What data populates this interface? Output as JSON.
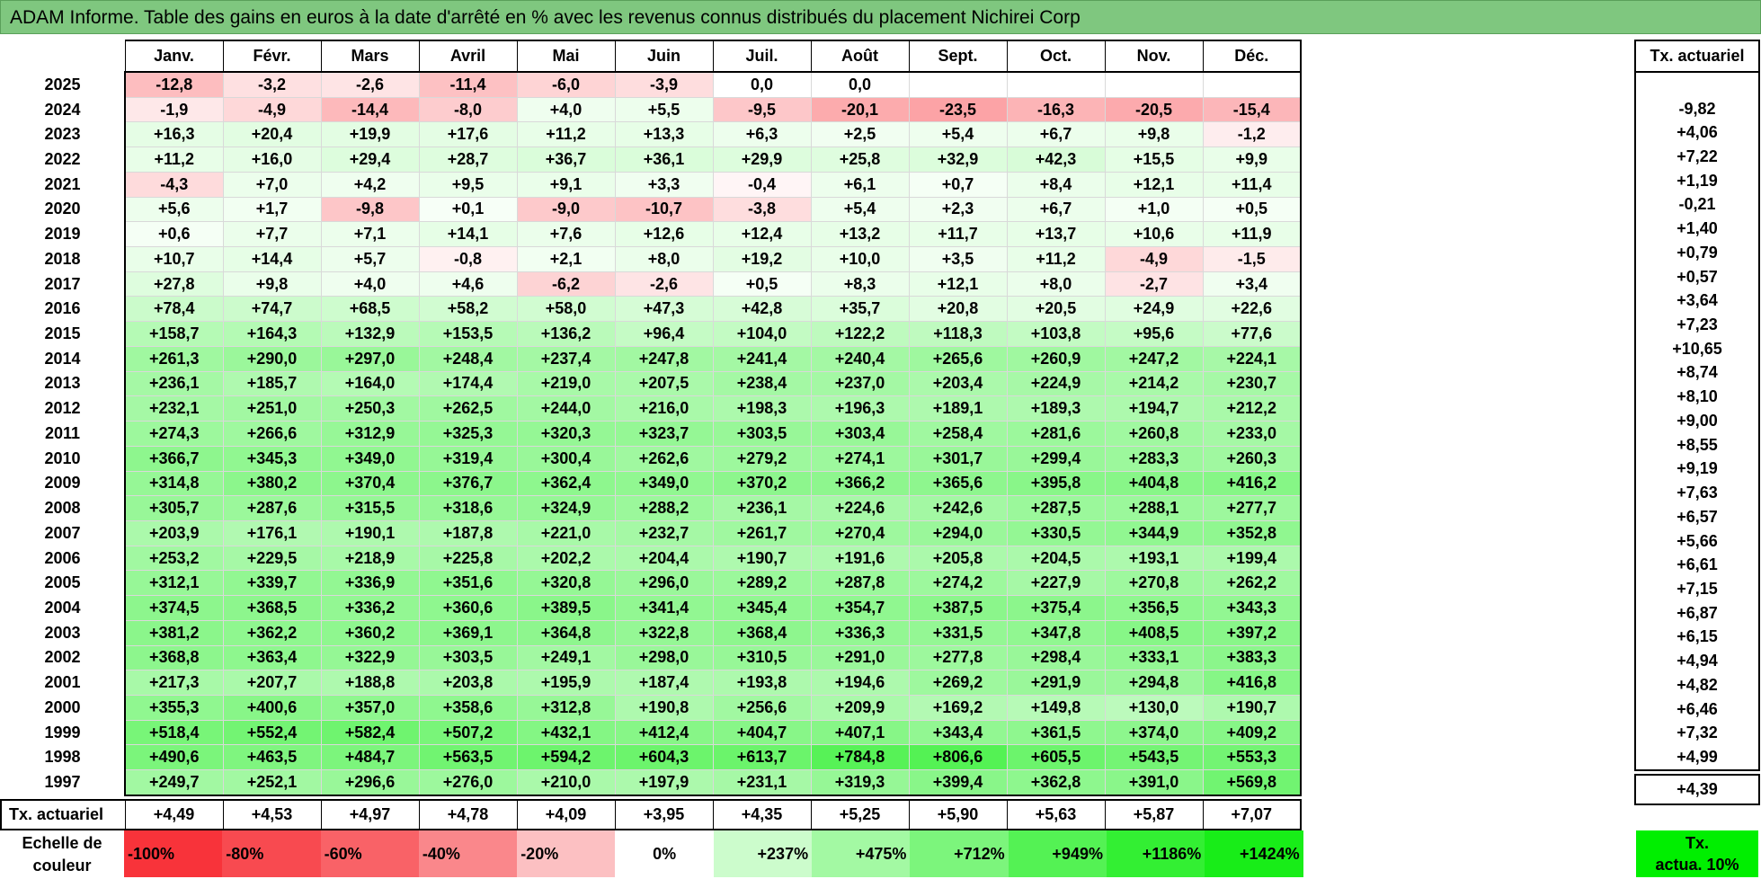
{
  "title": "ADAM Informe. Table des gains en euros à la date d'arrêté en % avec les revenus connus distribués du placement Nichirei Corp",
  "months": [
    "Janv.",
    "Févr.",
    "Mars",
    "Avril",
    "Mai",
    "Juin",
    "Juil.",
    "Août",
    "Sept.",
    "Oct.",
    "Nov.",
    "Déc."
  ],
  "actuarial_header": "Tx. actuariel",
  "rows": [
    {
      "year": "2025",
      "values": [
        "-12,8",
        "-3,2",
        "-2,6",
        "-11,4",
        "-6,0",
        "-3,9",
        "0,0",
        "0,0",
        "",
        "",
        "",
        ""
      ],
      "rate": ""
    },
    {
      "year": "2024",
      "values": [
        "-1,9",
        "-4,9",
        "-14,4",
        "-8,0",
        "+4,0",
        "+5,5",
        "-9,5",
        "-20,1",
        "-23,5",
        "-16,3",
        "-20,5",
        "-15,4"
      ],
      "rate": "-9,82"
    },
    {
      "year": "2023",
      "values": [
        "+16,3",
        "+20,4",
        "+19,9",
        "+17,6",
        "+11,2",
        "+13,3",
        "+6,3",
        "+2,5",
        "+5,4",
        "+6,7",
        "+9,8",
        "-1,2"
      ],
      "rate": "+4,06"
    },
    {
      "year": "2022",
      "values": [
        "+11,2",
        "+16,0",
        "+29,4",
        "+28,7",
        "+36,7",
        "+36,1",
        "+29,9",
        "+25,8",
        "+32,9",
        "+42,3",
        "+15,5",
        "+9,9"
      ],
      "rate": "+7,22"
    },
    {
      "year": "2021",
      "values": [
        "-4,3",
        "+7,0",
        "+4,2",
        "+9,5",
        "+9,1",
        "+3,3",
        "-0,4",
        "+6,1",
        "+0,7",
        "+8,4",
        "+12,1",
        "+11,4"
      ],
      "rate": "+1,19"
    },
    {
      "year": "2020",
      "values": [
        "+5,6",
        "+1,7",
        "-9,8",
        "+0,1",
        "-9,0",
        "-10,7",
        "-3,8",
        "+5,4",
        "+2,3",
        "+6,7",
        "+1,0",
        "+0,5"
      ],
      "rate": "-0,21"
    },
    {
      "year": "2019",
      "values": [
        "+0,6",
        "+7,7",
        "+7,1",
        "+14,1",
        "+7,6",
        "+12,6",
        "+12,4",
        "+13,2",
        "+11,7",
        "+13,7",
        "+10,6",
        "+11,9"
      ],
      "rate": "+1,40"
    },
    {
      "year": "2018",
      "values": [
        "+10,7",
        "+14,4",
        "+5,7",
        "-0,8",
        "+2,1",
        "+8,0",
        "+19,2",
        "+10,0",
        "+3,5",
        "+11,2",
        "-4,9",
        "-1,5"
      ],
      "rate": "+0,79"
    },
    {
      "year": "2017",
      "values": [
        "+27,8",
        "+9,8",
        "+4,0",
        "+4,6",
        "-6,2",
        "-2,6",
        "+0,5",
        "+8,3",
        "+12,1",
        "+8,0",
        "-2,7",
        "+3,4"
      ],
      "rate": "+0,57"
    },
    {
      "year": "2016",
      "values": [
        "+78,4",
        "+74,7",
        "+68,5",
        "+58,2",
        "+58,0",
        "+47,3",
        "+42,8",
        "+35,7",
        "+20,8",
        "+20,5",
        "+24,9",
        "+22,6"
      ],
      "rate": "+3,64"
    },
    {
      "year": "2015",
      "values": [
        "+158,7",
        "+164,3",
        "+132,9",
        "+153,5",
        "+136,2",
        "+96,4",
        "+104,0",
        "+122,2",
        "+118,3",
        "+103,8",
        "+95,6",
        "+77,6"
      ],
      "rate": "+7,23"
    },
    {
      "year": "2014",
      "values": [
        "+261,3",
        "+290,0",
        "+297,0",
        "+248,4",
        "+237,4",
        "+247,8",
        "+241,4",
        "+240,4",
        "+265,6",
        "+260,9",
        "+247,2",
        "+224,1"
      ],
      "rate": "+10,65"
    },
    {
      "year": "2013",
      "values": [
        "+236,1",
        "+185,7",
        "+164,0",
        "+174,4",
        "+219,0",
        "+207,5",
        "+238,4",
        "+237,0",
        "+203,4",
        "+224,9",
        "+214,2",
        "+230,7"
      ],
      "rate": "+8,74"
    },
    {
      "year": "2012",
      "values": [
        "+232,1",
        "+251,0",
        "+250,3",
        "+262,5",
        "+244,0",
        "+216,0",
        "+198,3",
        "+196,3",
        "+189,1",
        "+189,3",
        "+194,7",
        "+212,2"
      ],
      "rate": "+8,10"
    },
    {
      "year": "2011",
      "values": [
        "+274,3",
        "+266,6",
        "+312,9",
        "+325,3",
        "+320,3",
        "+323,7",
        "+303,5",
        "+303,4",
        "+258,4",
        "+281,6",
        "+260,8",
        "+233,0"
      ],
      "rate": "+9,00"
    },
    {
      "year": "2010",
      "values": [
        "+366,7",
        "+345,3",
        "+349,0",
        "+319,4",
        "+300,4",
        "+262,6",
        "+279,2",
        "+274,1",
        "+301,7",
        "+299,4",
        "+283,3",
        "+260,3"
      ],
      "rate": "+8,55"
    },
    {
      "year": "2009",
      "values": [
        "+314,8",
        "+380,2",
        "+370,4",
        "+376,7",
        "+362,4",
        "+349,0",
        "+370,2",
        "+366,2",
        "+365,6",
        "+395,8",
        "+404,8",
        "+416,2"
      ],
      "rate": "+9,19"
    },
    {
      "year": "2008",
      "values": [
        "+305,7",
        "+287,6",
        "+315,5",
        "+318,6",
        "+324,9",
        "+288,2",
        "+236,1",
        "+224,6",
        "+242,6",
        "+287,5",
        "+288,1",
        "+277,7"
      ],
      "rate": "+7,63"
    },
    {
      "year": "2007",
      "values": [
        "+203,9",
        "+176,1",
        "+190,1",
        "+187,8",
        "+221,0",
        "+232,7",
        "+261,7",
        "+270,4",
        "+294,0",
        "+330,5",
        "+344,9",
        "+352,8"
      ],
      "rate": "+6,57"
    },
    {
      "year": "2006",
      "values": [
        "+253,2",
        "+229,5",
        "+218,9",
        "+225,8",
        "+202,2",
        "+204,4",
        "+190,7",
        "+191,6",
        "+205,8",
        "+204,5",
        "+193,1",
        "+199,4"
      ],
      "rate": "+5,66"
    },
    {
      "year": "2005",
      "values": [
        "+312,1",
        "+339,7",
        "+336,9",
        "+351,6",
        "+320,8",
        "+296,0",
        "+289,2",
        "+287,8",
        "+274,2",
        "+227,9",
        "+270,8",
        "+262,2"
      ],
      "rate": "+6,61"
    },
    {
      "year": "2004",
      "values": [
        "+374,5",
        "+368,5",
        "+336,2",
        "+360,6",
        "+389,5",
        "+341,4",
        "+345,4",
        "+354,7",
        "+387,5",
        "+375,4",
        "+356,5",
        "+343,3"
      ],
      "rate": "+7,15"
    },
    {
      "year": "2003",
      "values": [
        "+381,2",
        "+362,2",
        "+360,2",
        "+369,1",
        "+364,8",
        "+322,8",
        "+368,4",
        "+336,3",
        "+331,5",
        "+347,8",
        "+408,5",
        "+397,2"
      ],
      "rate": "+6,87"
    },
    {
      "year": "2002",
      "values": [
        "+368,8",
        "+363,4",
        "+322,9",
        "+303,5",
        "+249,1",
        "+298,0",
        "+310,5",
        "+291,0",
        "+277,8",
        "+298,4",
        "+333,1",
        "+383,3"
      ],
      "rate": "+6,15"
    },
    {
      "year": "2001",
      "values": [
        "+217,3",
        "+207,7",
        "+188,8",
        "+203,8",
        "+195,9",
        "+187,4",
        "+193,8",
        "+194,6",
        "+269,2",
        "+291,9",
        "+294,8",
        "+416,8"
      ],
      "rate": "+4,94"
    },
    {
      "year": "2000",
      "values": [
        "+355,3",
        "+400,6",
        "+357,0",
        "+358,6",
        "+312,8",
        "+190,8",
        "+256,6",
        "+209,9",
        "+169,2",
        "+149,8",
        "+130,0",
        "+190,7"
      ],
      "rate": "+4,82"
    },
    {
      "year": "1999",
      "values": [
        "+518,4",
        "+552,4",
        "+582,4",
        "+507,2",
        "+432,1",
        "+412,4",
        "+404,7",
        "+407,1",
        "+343,4",
        "+361,5",
        "+374,0",
        "+409,2"
      ],
      "rate": "+6,46"
    },
    {
      "year": "1998",
      "values": [
        "+490,6",
        "+463,5",
        "+484,7",
        "+563,5",
        "+594,2",
        "+604,3",
        "+613,7",
        "+784,8",
        "+806,6",
        "+605,5",
        "+543,5",
        "+553,3"
      ],
      "rate": "+7,32"
    },
    {
      "year": "1997",
      "values": [
        "+249,7",
        "+252,1",
        "+296,6",
        "+276,0",
        "+210,0",
        "+197,9",
        "+231,1",
        "+319,3",
        "+399,4",
        "+362,8",
        "+391,0",
        "+569,8"
      ],
      "rate": "+4,99"
    }
  ],
  "footer": {
    "label": "Tx. actuariel",
    "values": [
      "+4,49",
      "+4,53",
      "+4,97",
      "+4,78",
      "+4,09",
      "+3,95",
      "+4,35",
      "+5,25",
      "+5,90",
      "+5,63",
      "+5,87",
      "+7,07"
    ],
    "total": "+4,39"
  },
  "scale": {
    "label_line1": "Echelle de",
    "label_line2": "couleur",
    "items": [
      {
        "label": "-100%",
        "color": "#f8333a"
      },
      {
        "label": "-80%",
        "color": "#f84a50"
      },
      {
        "label": "-60%",
        "color": "#f96267"
      },
      {
        "label": "-40%",
        "color": "#fa878b"
      },
      {
        "label": "-20%",
        "color": "#fcc0c2"
      },
      {
        "label": "0%",
        "color": "#ffffff"
      },
      {
        "label": "+237%",
        "color": "#ccfccc"
      },
      {
        "label": "+475%",
        "color": "#a3f9a3"
      },
      {
        "label": "+712%",
        "color": "#7cf57c"
      },
      {
        "label": "+949%",
        "color": "#54f254"
      },
      {
        "label": "+1186%",
        "color": "#33ef33"
      },
      {
        "label": "+1424%",
        "color": "#18ed18"
      }
    ],
    "box_line1": "Tx.",
    "box_line2": "actua. 10%"
  }
}
